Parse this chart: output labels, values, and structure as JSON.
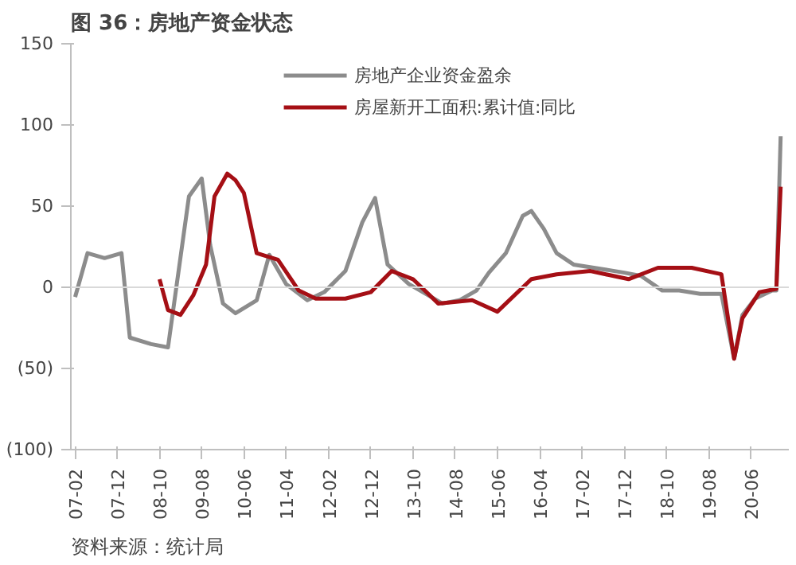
{
  "chart_data": {
    "type": "line",
    "title": "图 36：房地产资金状态",
    "annotations": [
      "资料来源：统计局"
    ],
    "xlim": [
      "2007-01",
      "2021-03"
    ],
    "xticks": [
      {
        "value": "2007-02",
        "label": "07-02"
      },
      {
        "value": "2007-12",
        "label": "07-12"
      },
      {
        "value": "2008-10",
        "label": "08-10"
      },
      {
        "value": "2009-08",
        "label": "09-08"
      },
      {
        "value": "2010-06",
        "label": "10-06"
      },
      {
        "value": "2011-04",
        "label": "11-04"
      },
      {
        "value": "2012-02",
        "label": "12-02"
      },
      {
        "value": "2012-12",
        "label": "12-12"
      },
      {
        "value": "2013-10",
        "label": "13-10"
      },
      {
        "value": "2014-08",
        "label": "14-08"
      },
      {
        "value": "2015-06",
        "label": "15-06"
      },
      {
        "value": "2016-04",
        "label": "16-04"
      },
      {
        "value": "2017-02",
        "label": "17-02"
      },
      {
        "value": "2017-12",
        "label": "17-12"
      },
      {
        "value": "2018-10",
        "label": "18-10"
      },
      {
        "value": "2019-08",
        "label": "19-08"
      },
      {
        "value": "2020-06",
        "label": "20-06"
      }
    ],
    "ylim": [
      -100,
      150
    ],
    "yticks": [
      {
        "value": -100,
        "label": "(100)"
      },
      {
        "value": -50,
        "label": "(50)"
      },
      0,
      50,
      100,
      150
    ],
    "grid": false,
    "legend": "top",
    "line_style": "solid",
    "marker": "none",
    "ref_lines": [
      {
        "axis": "y",
        "value": 0,
        "color": "#d9d9d9"
      }
    ],
    "series": [
      {
        "name": "房地产企业资金盈余",
        "color": "#8c8c8c",
        "x": [
          "2007-02",
          "2007-05",
          "2007-09",
          "2008-01",
          "2008-03",
          "2008-08",
          "2008-12",
          "2009-05",
          "2009-08",
          "2009-10",
          "2010-01",
          "2010-04",
          "2010-09",
          "2010-12",
          "2011-04",
          "2011-09",
          "2012-01",
          "2012-06",
          "2012-10",
          "2013-01",
          "2013-04",
          "2013-09",
          "2014-05",
          "2014-09",
          "2015-01",
          "2015-04",
          "2015-08",
          "2015-12",
          "2016-02",
          "2016-05",
          "2016-08",
          "2016-12",
          "2017-12",
          "2018-04",
          "2018-09",
          "2019-01",
          "2019-06",
          "2019-11",
          "2020-02",
          "2020-04",
          "2020-07",
          "2020-11",
          "2020-12",
          "2021-01"
        ],
        "values": [
          -6,
          21,
          18,
          21,
          -31,
          -35,
          -37,
          56,
          67,
          26,
          -10,
          -16,
          -8,
          20,
          2,
          -8,
          -3,
          10,
          40,
          55,
          14,
          2,
          -10,
          -8,
          -2,
          9,
          21,
          44,
          47,
          36,
          21,
          14,
          9,
          7,
          -2,
          -2,
          -4,
          -4,
          -44,
          -17,
          -7,
          -2,
          -2,
          93
        ]
      },
      {
        "name": "房屋新开工面积:累计值:同比",
        "color": "#a50f15",
        "x": [
          "2008-10",
          "2008-12",
          "2009-03",
          "2009-06",
          "2009-09",
          "2009-11",
          "2010-02",
          "2010-04",
          "2010-06",
          "2010-09",
          "2011-02",
          "2011-07",
          "2011-11",
          "2012-06",
          "2012-12",
          "2013-05",
          "2013-10",
          "2014-04",
          "2014-12",
          "2015-06",
          "2016-02",
          "2016-08",
          "2017-04",
          "2018-01",
          "2018-08",
          "2019-04",
          "2019-11",
          "2020-02",
          "2020-04",
          "2020-08",
          "2020-12",
          "2021-01"
        ],
        "values": [
          5,
          -14,
          -17,
          -5,
          14,
          56,
          70,
          66,
          58,
          21,
          17,
          -2,
          -7,
          -7,
          -3,
          10,
          5,
          -10,
          -8,
          -15,
          5,
          8,
          10,
          5,
          12,
          12,
          8,
          -44,
          -19,
          -3,
          -1,
          62
        ]
      }
    ]
  }
}
